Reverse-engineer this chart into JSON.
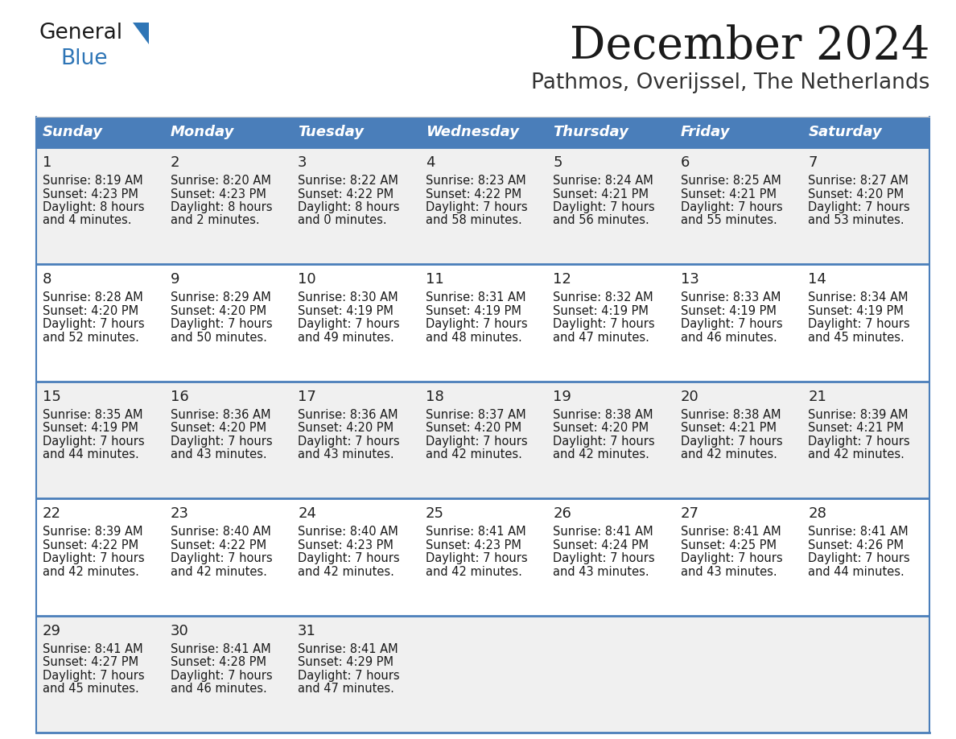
{
  "title": "December 2024",
  "subtitle": "Pathmos, Overijssel, The Netherlands",
  "days_of_week": [
    "Sunday",
    "Monday",
    "Tuesday",
    "Wednesday",
    "Thursday",
    "Friday",
    "Saturday"
  ],
  "header_bg": "#4a7eba",
  "header_text": "#FFFFFF",
  "row_bg_odd": "#f0f0f0",
  "row_bg_even": "#ffffff",
  "border_color": "#4a7eba",
  "title_color": "#1a1a1a",
  "subtitle_color": "#333333",
  "cell_text_color": "#1a1a1a",
  "day_num_color": "#222222",
  "logo_general_color": "#1a1a1a",
  "logo_blue_color": "#2e75b6",
  "logo_triangle_color": "#2e75b6",
  "calendar_data": [
    [
      {
        "day": 1,
        "sunrise": "8:19 AM",
        "sunset": "4:23 PM",
        "daylight_h": "8 hours",
        "daylight_m": "4 minutes"
      },
      {
        "day": 2,
        "sunrise": "8:20 AM",
        "sunset": "4:23 PM",
        "daylight_h": "8 hours",
        "daylight_m": "2 minutes"
      },
      {
        "day": 3,
        "sunrise": "8:22 AM",
        "sunset": "4:22 PM",
        "daylight_h": "8 hours",
        "daylight_m": "0 minutes"
      },
      {
        "day": 4,
        "sunrise": "8:23 AM",
        "sunset": "4:22 PM",
        "daylight_h": "7 hours",
        "daylight_m": "58 minutes"
      },
      {
        "day": 5,
        "sunrise": "8:24 AM",
        "sunset": "4:21 PM",
        "daylight_h": "7 hours",
        "daylight_m": "56 minutes"
      },
      {
        "day": 6,
        "sunrise": "8:25 AM",
        "sunset": "4:21 PM",
        "daylight_h": "7 hours",
        "daylight_m": "55 minutes"
      },
      {
        "day": 7,
        "sunrise": "8:27 AM",
        "sunset": "4:20 PM",
        "daylight_h": "7 hours",
        "daylight_m": "53 minutes"
      }
    ],
    [
      {
        "day": 8,
        "sunrise": "8:28 AM",
        "sunset": "4:20 PM",
        "daylight_h": "7 hours",
        "daylight_m": "52 minutes"
      },
      {
        "day": 9,
        "sunrise": "8:29 AM",
        "sunset": "4:20 PM",
        "daylight_h": "7 hours",
        "daylight_m": "50 minutes"
      },
      {
        "day": 10,
        "sunrise": "8:30 AM",
        "sunset": "4:19 PM",
        "daylight_h": "7 hours",
        "daylight_m": "49 minutes"
      },
      {
        "day": 11,
        "sunrise": "8:31 AM",
        "sunset": "4:19 PM",
        "daylight_h": "7 hours",
        "daylight_m": "48 minutes"
      },
      {
        "day": 12,
        "sunrise": "8:32 AM",
        "sunset": "4:19 PM",
        "daylight_h": "7 hours",
        "daylight_m": "47 minutes"
      },
      {
        "day": 13,
        "sunrise": "8:33 AM",
        "sunset": "4:19 PM",
        "daylight_h": "7 hours",
        "daylight_m": "46 minutes"
      },
      {
        "day": 14,
        "sunrise": "8:34 AM",
        "sunset": "4:19 PM",
        "daylight_h": "7 hours",
        "daylight_m": "45 minutes"
      }
    ],
    [
      {
        "day": 15,
        "sunrise": "8:35 AM",
        "sunset": "4:19 PM",
        "daylight_h": "7 hours",
        "daylight_m": "44 minutes"
      },
      {
        "day": 16,
        "sunrise": "8:36 AM",
        "sunset": "4:20 PM",
        "daylight_h": "7 hours",
        "daylight_m": "43 minutes"
      },
      {
        "day": 17,
        "sunrise": "8:36 AM",
        "sunset": "4:20 PM",
        "daylight_h": "7 hours",
        "daylight_m": "43 minutes"
      },
      {
        "day": 18,
        "sunrise": "8:37 AM",
        "sunset": "4:20 PM",
        "daylight_h": "7 hours",
        "daylight_m": "42 minutes"
      },
      {
        "day": 19,
        "sunrise": "8:38 AM",
        "sunset": "4:20 PM",
        "daylight_h": "7 hours",
        "daylight_m": "42 minutes"
      },
      {
        "day": 20,
        "sunrise": "8:38 AM",
        "sunset": "4:21 PM",
        "daylight_h": "7 hours",
        "daylight_m": "42 minutes"
      },
      {
        "day": 21,
        "sunrise": "8:39 AM",
        "sunset": "4:21 PM",
        "daylight_h": "7 hours",
        "daylight_m": "42 minutes"
      }
    ],
    [
      {
        "day": 22,
        "sunrise": "8:39 AM",
        "sunset": "4:22 PM",
        "daylight_h": "7 hours",
        "daylight_m": "42 minutes"
      },
      {
        "day": 23,
        "sunrise": "8:40 AM",
        "sunset": "4:22 PM",
        "daylight_h": "7 hours",
        "daylight_m": "42 minutes"
      },
      {
        "day": 24,
        "sunrise": "8:40 AM",
        "sunset": "4:23 PM",
        "daylight_h": "7 hours",
        "daylight_m": "42 minutes"
      },
      {
        "day": 25,
        "sunrise": "8:41 AM",
        "sunset": "4:23 PM",
        "daylight_h": "7 hours",
        "daylight_m": "42 minutes"
      },
      {
        "day": 26,
        "sunrise": "8:41 AM",
        "sunset": "4:24 PM",
        "daylight_h": "7 hours",
        "daylight_m": "43 minutes"
      },
      {
        "day": 27,
        "sunrise": "8:41 AM",
        "sunset": "4:25 PM",
        "daylight_h": "7 hours",
        "daylight_m": "43 minutes"
      },
      {
        "day": 28,
        "sunrise": "8:41 AM",
        "sunset": "4:26 PM",
        "daylight_h": "7 hours",
        "daylight_m": "44 minutes"
      }
    ],
    [
      {
        "day": 29,
        "sunrise": "8:41 AM",
        "sunset": "4:27 PM",
        "daylight_h": "7 hours",
        "daylight_m": "45 minutes"
      },
      {
        "day": 30,
        "sunrise": "8:41 AM",
        "sunset": "4:28 PM",
        "daylight_h": "7 hours",
        "daylight_m": "46 minutes"
      },
      {
        "day": 31,
        "sunrise": "8:41 AM",
        "sunset": "4:29 PM",
        "daylight_h": "7 hours",
        "daylight_m": "47 minutes"
      },
      null,
      null,
      null,
      null
    ]
  ]
}
